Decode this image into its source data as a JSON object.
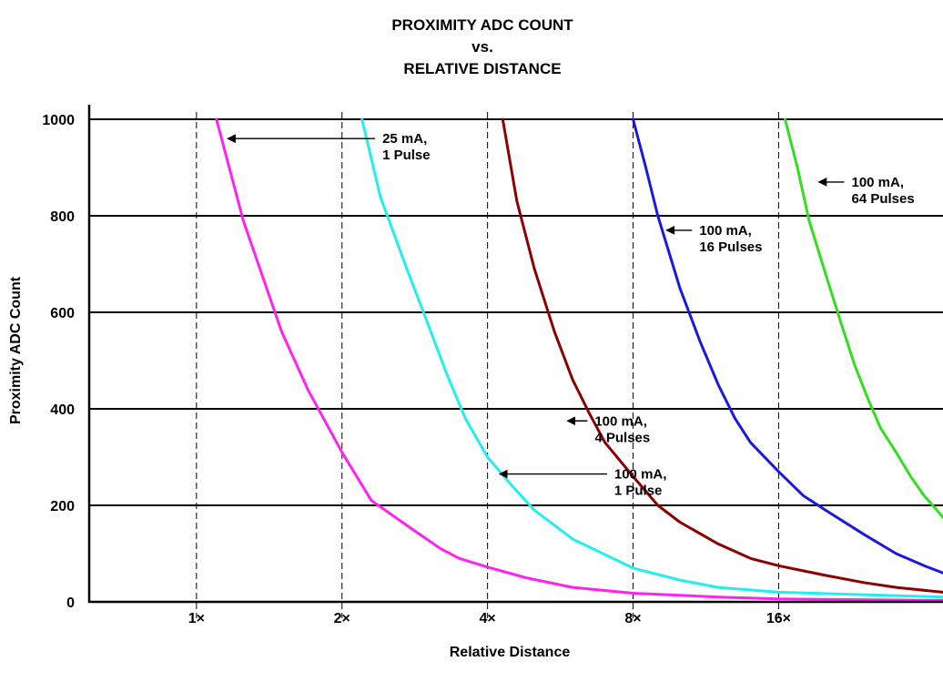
{
  "chart_data": {
    "type": "line",
    "title_lines": [
      "PROXIMITY ADC COUNT",
      "vs.",
      "RELATIVE DISTANCE"
    ],
    "xlabel": "Relative Distance",
    "ylabel": "Proximity ADC Count",
    "ylim": [
      0,
      1000
    ],
    "yticks": [
      0,
      200,
      400,
      600,
      800,
      1000
    ],
    "xlim": [
      0.6,
      35
    ],
    "xticks": [
      {
        "value": 1,
        "label": "1×"
      },
      {
        "value": 2,
        "label": "2×"
      },
      {
        "value": 4,
        "label": "4×"
      },
      {
        "value": 8,
        "label": "8×"
      },
      {
        "value": 16,
        "label": "16×"
      }
    ],
    "grid": {
      "horizontal": true,
      "vertical_dashed": true
    },
    "series": [
      {
        "color": "#ff22ee",
        "x": [
          1.1,
          1.25,
          1.5,
          1.7,
          2.0,
          2.3,
          2.8,
          3.2,
          3.5,
          4.0,
          4.8,
          6.0,
          8.0,
          12.0,
          16.0,
          35.0
        ],
        "y": [
          1000,
          790,
          560,
          440,
          310,
          210,
          150,
          110,
          90,
          72,
          50,
          30,
          18,
          10,
          6,
          3
        ]
      },
      {
        "color": "#22eeee",
        "x": [
          2.2,
          2.4,
          2.7,
          3.0,
          3.3,
          3.6,
          4.0,
          4.5,
          5.0,
          6.0,
          8.0,
          10.0,
          12.0,
          16.0,
          35.0
        ],
        "y": [
          1000,
          840,
          700,
          580,
          470,
          380,
          300,
          240,
          190,
          130,
          70,
          45,
          30,
          20,
          10
        ]
      },
      {
        "color": "#8b0000",
        "x": [
          4.3,
          4.6,
          5.0,
          5.5,
          6.0,
          6.5,
          7.0,
          8.0,
          9.0,
          10.0,
          12.0,
          14.0,
          16.0,
          20.0,
          24.0,
          28.0,
          35.0
        ],
        "y": [
          1000,
          830,
          690,
          560,
          460,
          390,
          330,
          260,
          200,
          165,
          120,
          90,
          75,
          55,
          40,
          30,
          20
        ]
      },
      {
        "color": "#1a1adf",
        "x": [
          8.0,
          8.5,
          9.0,
          10.0,
          11.0,
          12.0,
          13.0,
          14.0,
          16.0,
          18.0,
          20.0,
          24.0,
          28.0,
          32.0,
          35.0
        ],
        "y": [
          1000,
          900,
          800,
          650,
          540,
          450,
          380,
          330,
          270,
          220,
          190,
          140,
          100,
          75,
          60
        ]
      },
      {
        "color": "#33dd22",
        "x": [
          16.5,
          17.5,
          18.5,
          20.0,
          21.5,
          23.0,
          24.5,
          26.0,
          28.0,
          30.0,
          32.0,
          34.0,
          35.0
        ],
        "y": [
          1000,
          900,
          790,
          680,
          580,
          490,
          420,
          360,
          310,
          260,
          220,
          190,
          175
        ]
      }
    ],
    "annotations": [
      {
        "text": [
          "25 mA,",
          "1 Pulse"
        ],
        "x": 1.15,
        "y": 960
      },
      {
        "text": [
          "100 mA,",
          "64 Pulses"
        ],
        "x": 19.2,
        "y": 870
      },
      {
        "text": [
          "100 mA,",
          "16 Pulses"
        ],
        "x": 9.3,
        "y": 770
      },
      {
        "text": [
          "100 mA,",
          "4 Pulses"
        ],
        "x": 5.8,
        "y": 375
      },
      {
        "text": [
          "100 mA,",
          "1 Pulse"
        ],
        "x": 4.2,
        "y": 265
      }
    ]
  }
}
